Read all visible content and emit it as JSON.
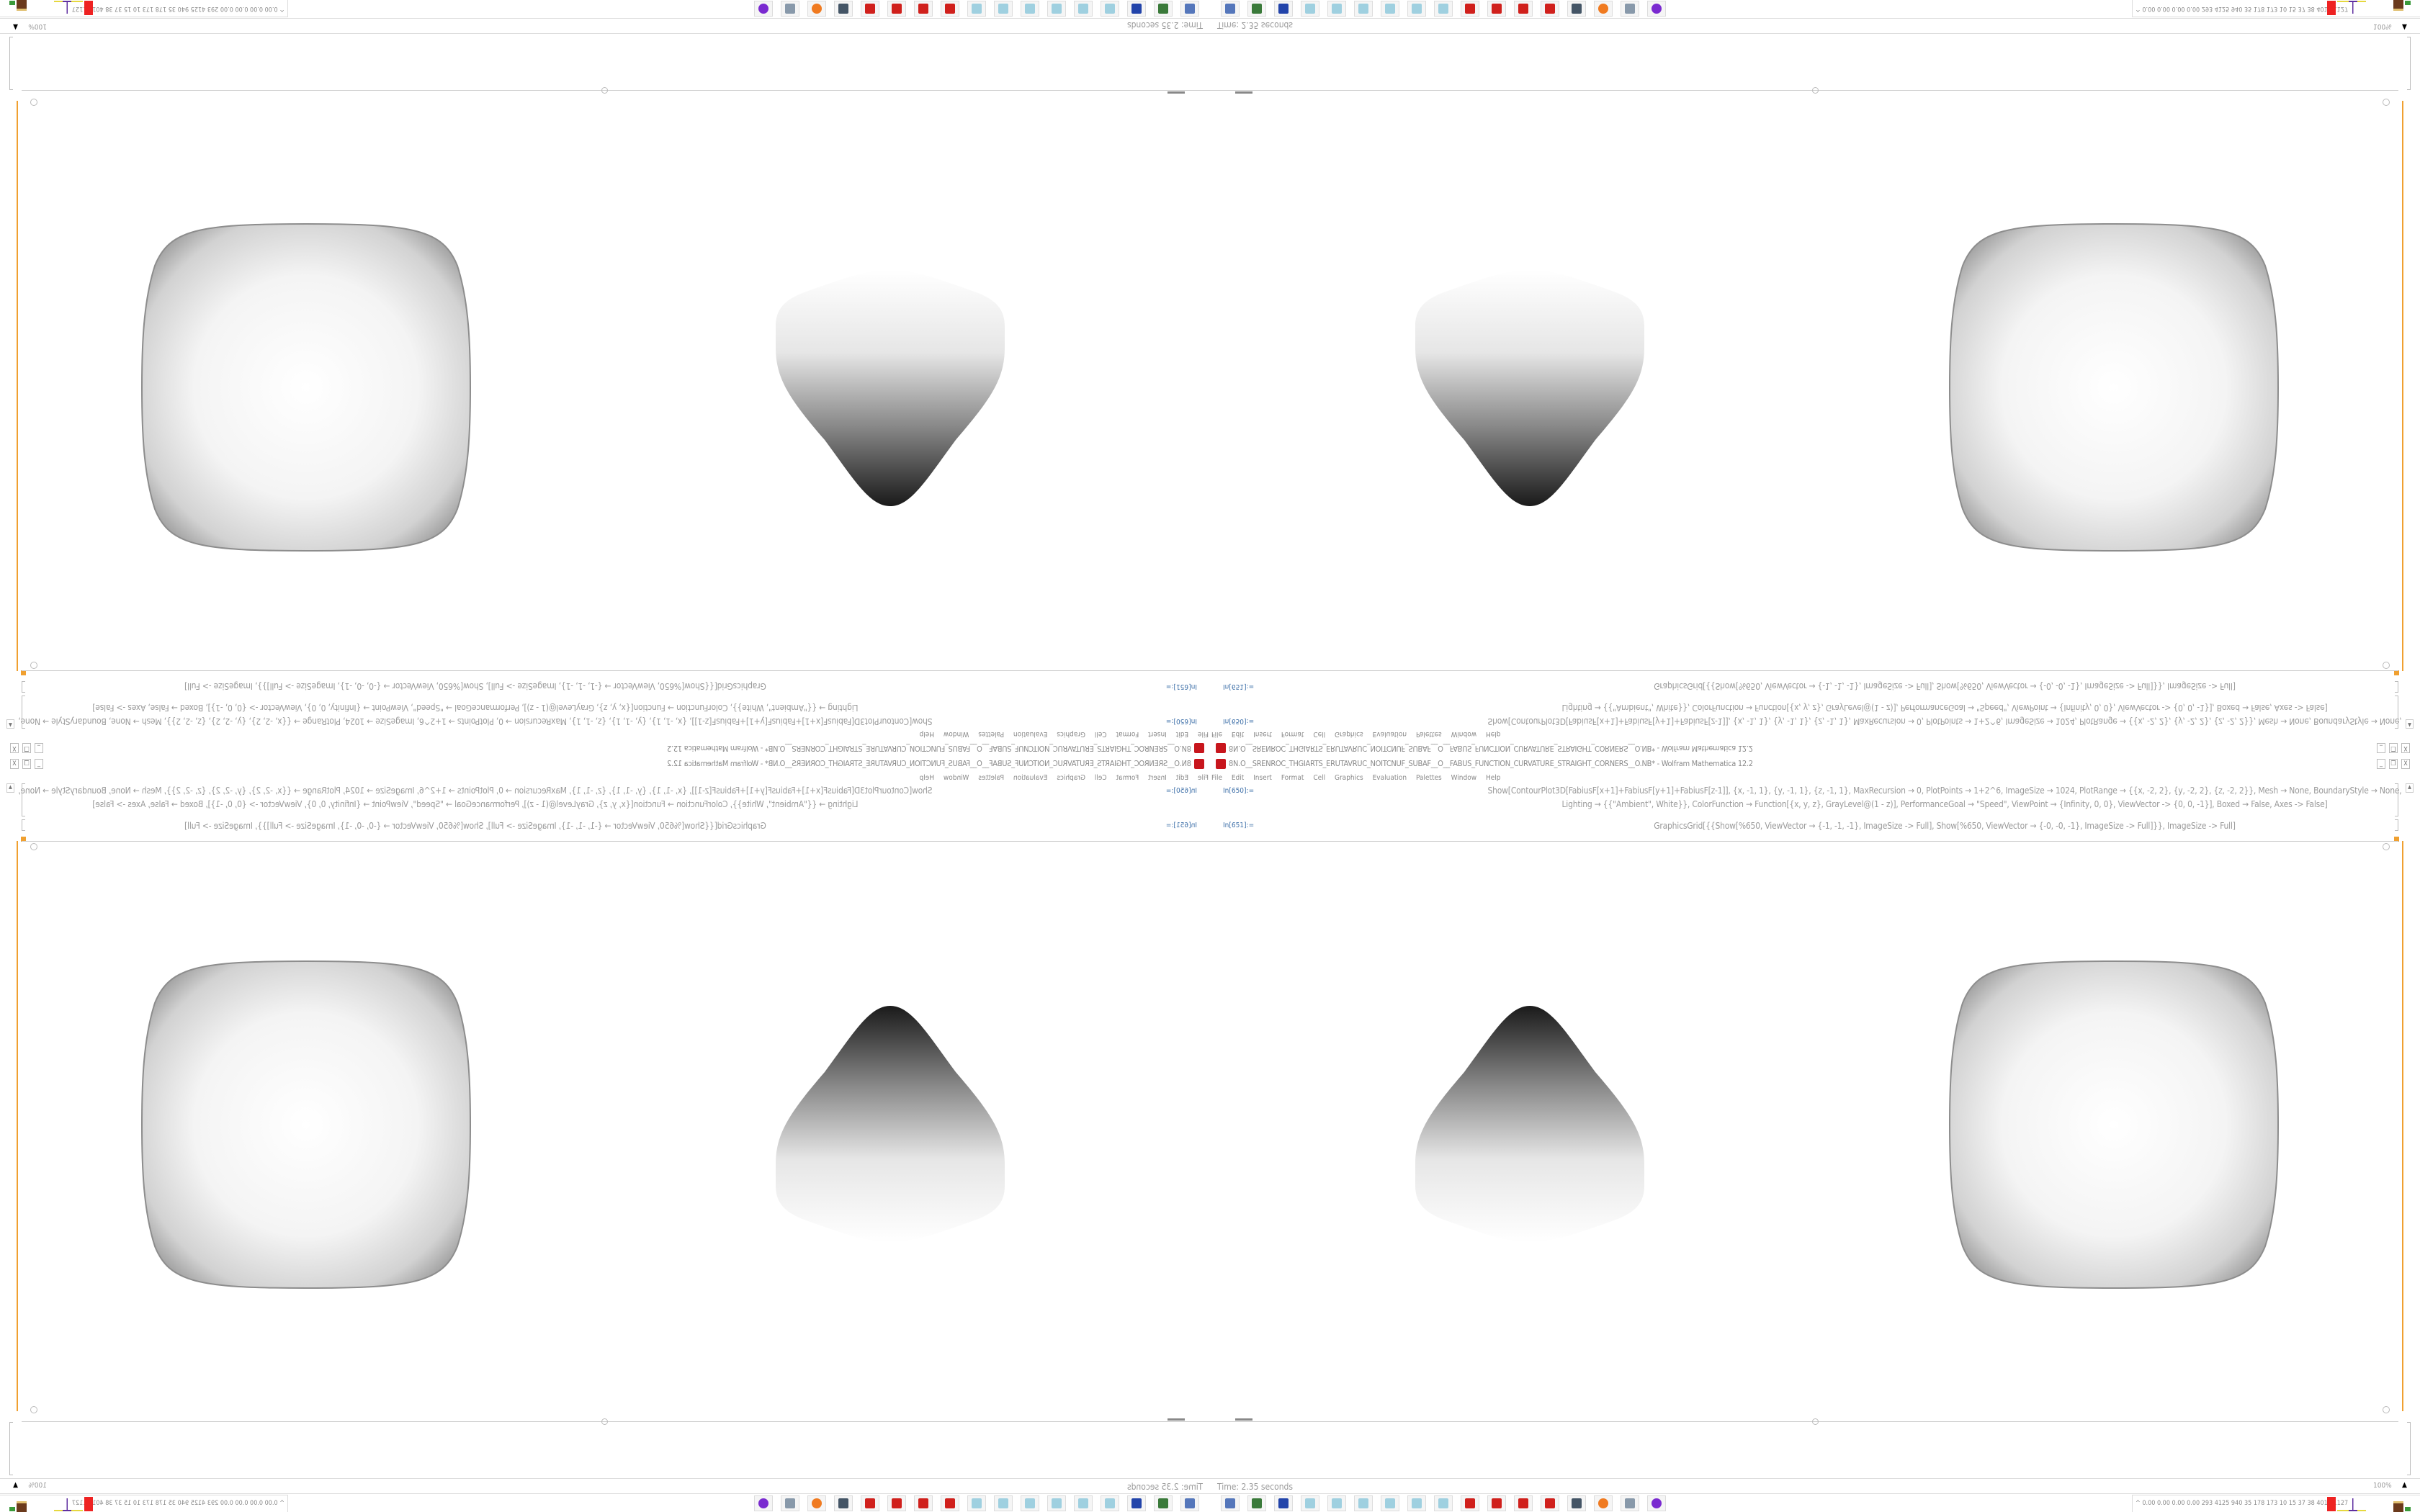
{
  "window": {
    "title": "8N.O__SRENROC_THGIARTS_ERUTAVRUC_NOITCNUF_SUBAF__O__FABUS_FUNCTION_CURVATURE_STRAIGHT_CORNERS__O.NB* - Wolfram Mathematica 12.2",
    "controls": {
      "minimize": "_",
      "restore": "❐",
      "close": "X"
    }
  },
  "menu": [
    "File",
    "Edit",
    "Insert",
    "Format",
    "Cell",
    "Graphics",
    "Evaluation",
    "Palettes",
    "Window",
    "Help"
  ],
  "cells": [
    {
      "label": "In[650]:=",
      "lines": [
        "Show[ContourPlot3D[FabiusF[x+1]+FabiusF[y+1]+FabiusF[z-1]], {x, -1, 1}, {y, -1, 1}, {z, -1, 1}, MaxRecursion → 0, PlotPoints → 1+2^6, ImageSize → 1024, PlotRange → {{x, -2, 2}, {y, -2, 2}, {z, -2, 2}}, Mesh → None, BoundaryStyle → None,",
        "Lighting → {{\"Ambient\", White}}, ColorFunction → Function[{x, y, z}, GrayLevel@(1 - z)], PerformanceGoal → \"Speed\", ViewPoint → {Infinity, 0, 0}, ViewVector -> {0, 0, -1}], Boxed → False, Axes -> False]"
      ]
    },
    {
      "label": "In[651]:=",
      "lines": [
        "GraphicsGrid[{{Show[%650, ViewVector → {-1, -1, -1}, ImageSize -> Full], Show[%650, ViewVector → {-0, -0, -1}, ImageSize -> Full]}}, ImageSize -> Full]"
      ]
    }
  ],
  "output": {
    "gradient_dark": "#1a1a1a",
    "gradient_light": "#ffffff",
    "cell_bracket_color": "#f0a030"
  },
  "statusbar": {
    "timing": "Time: 2.35 seconds",
    "zoom": "100%"
  },
  "taskbar": {
    "icons": [
      "computer-icon",
      "monitor-icon",
      "save-disk-icon",
      "notepad-icon",
      "notepad-icon",
      "notepad-icon",
      "notepad-icon",
      "notepad-icon",
      "notepad-icon",
      "mathematica-icon",
      "mathematica-icon",
      "mathematica-icon",
      "mathematica-icon",
      "device-icon",
      "firefox-icon",
      "scroll-icon",
      "purple-app-icon"
    ],
    "tray_text": "^ 0.00 0.00 0.00 0.00 293 4125 940 35 178 173 10 15 37 38 4012 1127"
  }
}
